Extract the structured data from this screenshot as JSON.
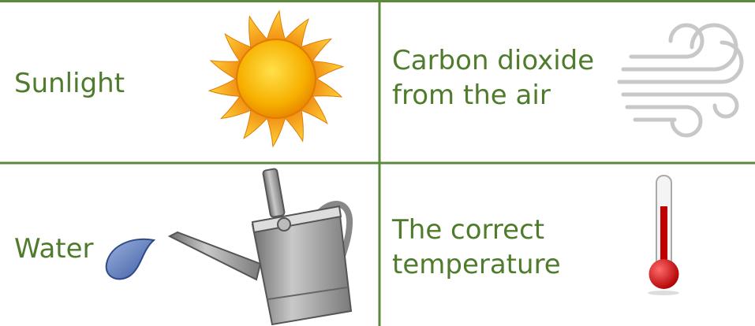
{
  "cells": [
    {
      "lines": [
        "Sunlight"
      ]
    },
    {
      "lines": [
        "Carbon dioxide",
        "from the air"
      ]
    },
    {
      "lines": [
        "Water"
      ]
    },
    {
      "lines": [
        "The correct",
        "temperature"
      ]
    }
  ]
}
